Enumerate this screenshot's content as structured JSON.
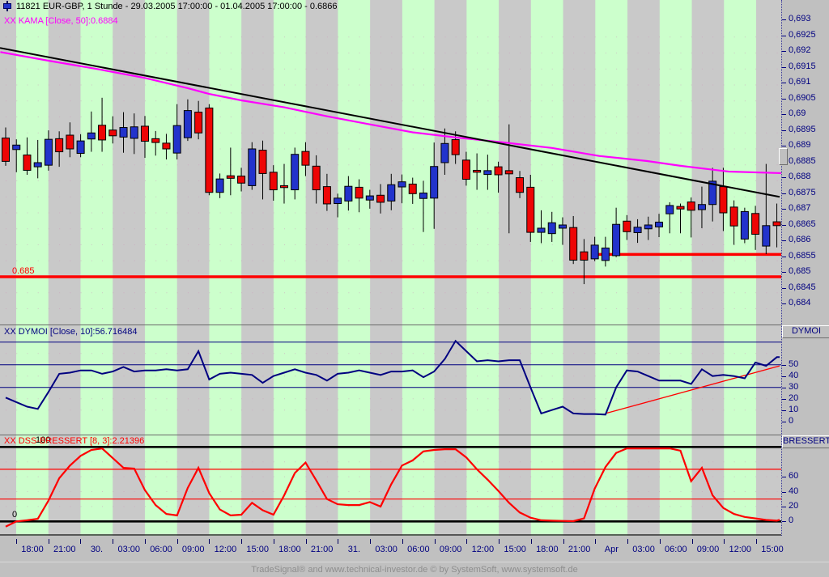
{
  "titlebar": {
    "icon": "candlestick-icon",
    "title": "11821  EUR-GBP, 1 Stunde - 29.03.2005 17:00:00 - 01.04.2005 17:00:00 - 0.6866"
  },
  "overlays": {
    "kama_label": "XX KAMA [Close, 50]:0.6884",
    "dymoi_label": "XX DYMOI [Close, 10]:56.716484",
    "bressert_label": "XX DSS-BRESSERT [8, 3]:2.21396",
    "level_100": "100",
    "level_0": "0",
    "support_label": "0.685"
  },
  "right_axis": {
    "price_labels": [
      "0,693",
      "0,6925",
      "0,692",
      "0,6915",
      "0,691",
      "0,6905",
      "0,69",
      "0,6895",
      "0,689",
      "0,6885",
      "0,688",
      "0,6875",
      "0,687",
      "0,6865",
      "0,686",
      "0,6855",
      "0,685",
      "0,6845",
      "0,684"
    ],
    "dymoi_header": "DYMOI",
    "dymoi_labels": [
      "50",
      "40",
      "30",
      "20",
      "10",
      "0"
    ],
    "dymoi_values": [
      50,
      40,
      30,
      20,
      10,
      0
    ],
    "bressert_header": "BRESSERT",
    "bressert_labels": [
      "60",
      "40",
      "20",
      "0"
    ],
    "bressert_values": [
      60,
      40,
      20,
      0
    ]
  },
  "x_axis": {
    "labels": [
      "18:00",
      "21:00",
      "30.",
      "03:00",
      "06:00",
      "09:00",
      "12:00",
      "15:00",
      "18:00",
      "21:00",
      "31.",
      "03:00",
      "06:00",
      "09:00",
      "12:00",
      "15:00",
      "18:00",
      "21:00",
      "Apr",
      "03:00",
      "06:00",
      "09:00",
      "12:00",
      "15:00"
    ]
  },
  "footer": {
    "text": "TradeSignal® and www.technical-investor.de © by SystemSoft, www.systemsoft.de"
  },
  "colors": {
    "band_green": "#ccffcc",
    "band_gray": "#c9c9c9",
    "chrome": "#c0c0c0",
    "candle_up": "#2233cc",
    "candle_down": "#ee0505",
    "wick": "#000000",
    "kama": "#ff00ff",
    "trendline": "#000000",
    "level_red": "#ff0000",
    "dymoi_line": "#000080",
    "bressert_line": "#ff0000",
    "axis_text": "#000080",
    "grid_dots": "#cc99bb"
  },
  "chart_data": {
    "type": "candlestick",
    "symbol": "EUR-GBP",
    "interval": "1 Stunde",
    "range": "29.03.2005 17:00:00 - 01.04.2005 17:00:00",
    "last_price": 0.6866,
    "price_axis": {
      "top": 0.693,
      "bottom": 0.684,
      "step": 0.0005
    },
    "candles": [
      [
        0.68934,
        0.68967,
        0.68847,
        0.68861
      ],
      [
        0.68898,
        0.6893,
        0.68827,
        0.68912
      ],
      [
        0.68881,
        0.68936,
        0.68819,
        0.68833
      ],
      [
        0.68844,
        0.68928,
        0.68808,
        0.68857
      ],
      [
        0.68849,
        0.68958,
        0.68832,
        0.6893
      ],
      [
        0.68932,
        0.68955,
        0.68844,
        0.68891
      ],
      [
        0.68943,
        0.68983,
        0.68874,
        0.689
      ],
      [
        0.68886,
        0.68946,
        0.68874,
        0.68925
      ],
      [
        0.68931,
        0.69017,
        0.68891,
        0.6895
      ],
      [
        0.68974,
        0.6906,
        0.68891,
        0.68928
      ],
      [
        0.68959,
        0.69002,
        0.68917,
        0.68941
      ],
      [
        0.68937,
        0.69015,
        0.68888,
        0.68967
      ],
      [
        0.68933,
        0.69011,
        0.68884,
        0.68969
      ],
      [
        0.68971,
        0.69003,
        0.68872,
        0.68924
      ],
      [
        0.68932,
        0.68956,
        0.68879,
        0.6892
      ],
      [
        0.68918,
        0.68947,
        0.68867,
        0.689
      ],
      [
        0.68887,
        0.6904,
        0.68867,
        0.68973
      ],
      [
        0.68935,
        0.69055,
        0.68925,
        0.6902
      ],
      [
        0.69015,
        0.6905,
        0.6893,
        0.6895
      ],
      [
        0.69028,
        0.6904,
        0.68755,
        0.68764
      ],
      [
        0.68764,
        0.68823,
        0.68746,
        0.68806
      ],
      [
        0.68816,
        0.68904,
        0.68755,
        0.68808
      ],
      [
        0.68815,
        0.68841,
        0.68767,
        0.68793
      ],
      [
        0.68785,
        0.68921,
        0.68772,
        0.689
      ],
      [
        0.68896,
        0.68926,
        0.68742,
        0.68823
      ],
      [
        0.68827,
        0.68849,
        0.68738,
        0.68772
      ],
      [
        0.68785,
        0.68853,
        0.68729,
        0.68779
      ],
      [
        0.68772,
        0.68904,
        0.68742,
        0.68883
      ],
      [
        0.68892,
        0.68921,
        0.68815,
        0.68849
      ],
      [
        0.68846,
        0.6888,
        0.68729,
        0.68772
      ],
      [
        0.68782,
        0.68822,
        0.68706,
        0.68728
      ],
      [
        0.68729,
        0.6876,
        0.68686,
        0.68746
      ],
      [
        0.68737,
        0.68815,
        0.68707,
        0.68783
      ],
      [
        0.6878,
        0.68805,
        0.68702,
        0.68746
      ],
      [
        0.6874,
        0.68772,
        0.68713,
        0.68753
      ],
      [
        0.68755,
        0.6879,
        0.68698,
        0.68733
      ],
      [
        0.68737,
        0.68822,
        0.68708,
        0.68788
      ],
      [
        0.68781,
        0.6882,
        0.6873,
        0.68797
      ],
      [
        0.6879,
        0.6881,
        0.68728,
        0.6876
      ],
      [
        0.68745,
        0.688,
        0.6864,
        0.68762
      ],
      [
        0.68746,
        0.6892,
        0.6865,
        0.68845
      ],
      [
        0.68857,
        0.68964,
        0.68819,
        0.68917
      ],
      [
        0.68929,
        0.68955,
        0.68853,
        0.68882
      ],
      [
        0.68865,
        0.68891,
        0.68785,
        0.68805
      ],
      [
        0.68833,
        0.68886,
        0.68772,
        0.68827
      ],
      [
        0.6882,
        0.68882,
        0.68772,
        0.68832
      ],
      [
        0.68844,
        0.6886,
        0.68763,
        0.68819
      ],
      [
        0.68832,
        0.68977,
        0.68636,
        0.68822
      ],
      [
        0.6881,
        0.68831,
        0.68746,
        0.68764
      ],
      [
        0.6878,
        0.68819,
        0.68609,
        0.68639
      ],
      [
        0.68639,
        0.68708,
        0.68605,
        0.68652
      ],
      [
        0.68635,
        0.68703,
        0.68609,
        0.68669
      ],
      [
        0.68652,
        0.68686,
        0.686,
        0.68662
      ],
      [
        0.68654,
        0.6869,
        0.6854,
        0.68552
      ],
      [
        0.68578,
        0.68618,
        0.68477,
        0.68552
      ],
      [
        0.68556,
        0.68625,
        0.68549,
        0.68599
      ],
      [
        0.68551,
        0.68625,
        0.68532,
        0.6859
      ],
      [
        0.68566,
        0.68716,
        0.68561,
        0.68664
      ],
      [
        0.68674,
        0.68693,
        0.68615,
        0.68641
      ],
      [
        0.68638,
        0.6868,
        0.68606,
        0.68655
      ],
      [
        0.6865,
        0.68688,
        0.68615,
        0.68662
      ],
      [
        0.68656,
        0.68697,
        0.68624,
        0.68671
      ],
      [
        0.68697,
        0.68733,
        0.68636,
        0.68723
      ],
      [
        0.6872,
        0.68729,
        0.68636,
        0.68712
      ],
      [
        0.68734,
        0.68748,
        0.68623,
        0.68708
      ],
      [
        0.6871,
        0.68782,
        0.68652,
        0.68726
      ],
      [
        0.68726,
        0.68841,
        0.68673,
        0.68799
      ],
      [
        0.68782,
        0.68841,
        0.68643,
        0.687
      ],
      [
        0.68718,
        0.68739,
        0.686,
        0.68659
      ],
      [
        0.68618,
        0.68716,
        0.68605,
        0.68704
      ],
      [
        0.68698,
        0.68722,
        0.68584,
        0.68633
      ],
      [
        0.68596,
        0.68853,
        0.68571,
        0.6866
      ],
      [
        0.68672,
        0.68729,
        0.68592,
        0.6866
      ]
    ],
    "kama": {
      "final_value": 0.6884,
      "anchors": [
        [
          -0.5,
          0.69203
        ],
        [
          4,
          0.69176
        ],
        [
          8.5,
          0.6915
        ],
        [
          13,
          0.69122
        ],
        [
          17,
          0.6909
        ],
        [
          19,
          0.69072
        ],
        [
          22,
          0.69052
        ],
        [
          26,
          0.6903
        ],
        [
          30,
          0.69002
        ],
        [
          33.5,
          0.6898
        ],
        [
          38,
          0.68952
        ],
        [
          42,
          0.68936
        ],
        [
          46.3,
          0.68921
        ],
        [
          51,
          0.68903
        ],
        [
          55.4,
          0.68878
        ],
        [
          59.9,
          0.68862
        ],
        [
          63,
          0.68847
        ],
        [
          67.5,
          0.68829
        ],
        [
          72.6,
          0.68824
        ]
      ]
    },
    "trendline": {
      "p1": 0.69216,
      "p2": 0.6875
    },
    "support_lines": [
      {
        "price": 0.685,
        "from_bar": -0.6,
        "to_bar": 73
      },
      {
        "price": 0.6857,
        "from_bar": 55.2,
        "to_bar": 73
      }
    ],
    "dymoi": {
      "final_value": 56.716484,
      "levels": [
        70,
        50,
        30
      ],
      "values": [
        21,
        17,
        13,
        11,
        26,
        42,
        43,
        45,
        45,
        42,
        44,
        48,
        44,
        45,
        45,
        46,
        45,
        46,
        62,
        37,
        42,
        43,
        42,
        41,
        34,
        40,
        43,
        46,
        43,
        41,
        36,
        42,
        43,
        45,
        43,
        41,
        44,
        44,
        45,
        39,
        44,
        55,
        71,
        62,
        53,
        54,
        53,
        54,
        54,
        30,
        7,
        10,
        13,
        7,
        6.5,
        6.5,
        6,
        30,
        45,
        44,
        40,
        36,
        36,
        36,
        33,
        46,
        40,
        41,
        40,
        38,
        52,
        49,
        56.7
      ],
      "trend": {
        "from": [
          56,
          7
        ],
        "to": [
          72.6,
          49
        ]
      }
    },
    "bressert": {
      "final_value": 2.21396,
      "black_levels": [
        100,
        0
      ],
      "red_levels": [
        70,
        30
      ],
      "values": [
        -7,
        0,
        1.5,
        3.5,
        28,
        58,
        75,
        88,
        96,
        98,
        85,
        72,
        71,
        42,
        22,
        10,
        8,
        45,
        72,
        38,
        16,
        8,
        9,
        25,
        15,
        9,
        35,
        65,
        79,
        55,
        30,
        23,
        22,
        22,
        26,
        20,
        50,
        75,
        82,
        94,
        96,
        97,
        97,
        86,
        70,
        56,
        41,
        25,
        12,
        5,
        1.5,
        1,
        0.7,
        0.3,
        4,
        44,
        73,
        92,
        98,
        98,
        98,
        98,
        98,
        95,
        54,
        72,
        35,
        18,
        10,
        6,
        4,
        2,
        1
      ]
    }
  }
}
